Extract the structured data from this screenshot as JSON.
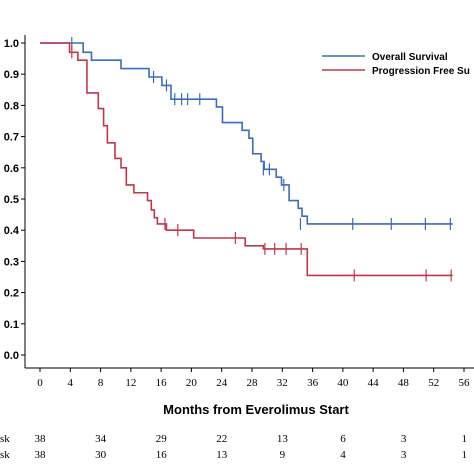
{
  "chart_data": {
    "type": "line",
    "title": "",
    "xlabel": "Months from Everolimus Start",
    "ylabel": "",
    "xlim": [
      -1.5,
      56
    ],
    "ylim": [
      0,
      1.0
    ],
    "x_ticks": [
      "0",
      "4",
      "8",
      "12",
      "16",
      "20",
      "24",
      "28",
      "32",
      "36",
      "40",
      "44",
      "48",
      "52",
      "56"
    ],
    "x_tick_values": [
      0,
      4,
      8,
      12,
      16,
      20,
      24,
      28,
      32,
      36,
      40,
      44,
      48,
      52,
      56
    ],
    "y_ticks": [
      "0.0",
      "0.1",
      "0.2",
      "0.3",
      "0.4",
      "0.5",
      "0.6",
      "0.7",
      "0.8",
      "0.9",
      "1.0"
    ],
    "y_tick_values": [
      0,
      0.1,
      0.2,
      0.3,
      0.4,
      0.5,
      0.6,
      0.7,
      0.8,
      0.9,
      1.0
    ],
    "legend_position": "top-right",
    "grid": false,
    "series": [
      {
        "name": "Overall Survival",
        "color": "#3a6bbf",
        "steps": [
          [
            0,
            1.0
          ],
          [
            5.7,
            0.97
          ],
          [
            6.8,
            0.945
          ],
          [
            10.7,
            0.918
          ],
          [
            14.4,
            0.891
          ],
          [
            16.1,
            0.864
          ],
          [
            17.3,
            0.82
          ],
          [
            23.3,
            0.795
          ],
          [
            24.1,
            0.745
          ],
          [
            26.7,
            0.72
          ],
          [
            27.6,
            0.695
          ],
          [
            28.1,
            0.645
          ],
          [
            29.2,
            0.62
          ],
          [
            29.6,
            0.595
          ],
          [
            31.2,
            0.57
          ],
          [
            31.9,
            0.545
          ],
          [
            32.9,
            0.495
          ],
          [
            34.1,
            0.47
          ],
          [
            34.6,
            0.445
          ],
          [
            35.3,
            0.42
          ],
          [
            54.5,
            0.42
          ]
        ],
        "censored": [
          [
            4.2,
            1.0
          ],
          [
            15.0,
            0.891
          ],
          [
            16.7,
            0.864
          ],
          [
            17.8,
            0.82
          ],
          [
            18.7,
            0.82
          ],
          [
            19.5,
            0.82
          ],
          [
            21.1,
            0.82
          ],
          [
            29.5,
            0.595
          ],
          [
            30.3,
            0.595
          ],
          [
            32.2,
            0.545
          ],
          [
            34.4,
            0.42
          ],
          [
            41.3,
            0.42
          ],
          [
            46.4,
            0.42
          ],
          [
            50.9,
            0.42
          ],
          [
            54.2,
            0.42
          ]
        ]
      },
      {
        "name": "Progression Free Survival",
        "color": "#c03848",
        "steps": [
          [
            0,
            1.0
          ],
          [
            3.9,
            0.97
          ],
          [
            5.0,
            0.945
          ],
          [
            6.2,
            0.84
          ],
          [
            7.7,
            0.79
          ],
          [
            8.4,
            0.735
          ],
          [
            8.9,
            0.68
          ],
          [
            9.9,
            0.63
          ],
          [
            10.7,
            0.6
          ],
          [
            11.4,
            0.545
          ],
          [
            12.4,
            0.52
          ],
          [
            14.2,
            0.495
          ],
          [
            14.7,
            0.465
          ],
          [
            15.1,
            0.44
          ],
          [
            15.5,
            0.42
          ],
          [
            16.7,
            0.4
          ],
          [
            20.3,
            0.375
          ],
          [
            27.1,
            0.35
          ],
          [
            29.5,
            0.34
          ],
          [
            35.3,
            0.255
          ],
          [
            54.5,
            0.255
          ]
        ],
        "censored": [
          [
            4.2,
            0.97
          ],
          [
            16.5,
            0.42
          ],
          [
            18.2,
            0.4
          ],
          [
            25.8,
            0.375
          ],
          [
            29.7,
            0.34
          ],
          [
            31.0,
            0.34
          ],
          [
            32.5,
            0.34
          ],
          [
            34.5,
            0.34
          ],
          [
            41.5,
            0.255
          ],
          [
            51.0,
            0.255
          ],
          [
            54.3,
            0.255
          ]
        ]
      }
    ],
    "legend": {
      "overall_label": "Overall Survival",
      "pfs_label": "Progression Free Su"
    },
    "risk_table": {
      "label_1": "sk",
      "label_2": "sk",
      "x_positions": [
        0,
        4,
        8,
        12,
        16,
        20,
        24,
        28,
        32,
        36,
        40,
        44,
        48,
        52,
        56
      ],
      "row_1": [
        "38",
        "34",
        "29",
        "22",
        "13",
        "6",
        "3",
        "1"
      ],
      "row_2": [
        "38",
        "30",
        "16",
        "13",
        "9",
        "4",
        "3",
        "1"
      ]
    }
  }
}
